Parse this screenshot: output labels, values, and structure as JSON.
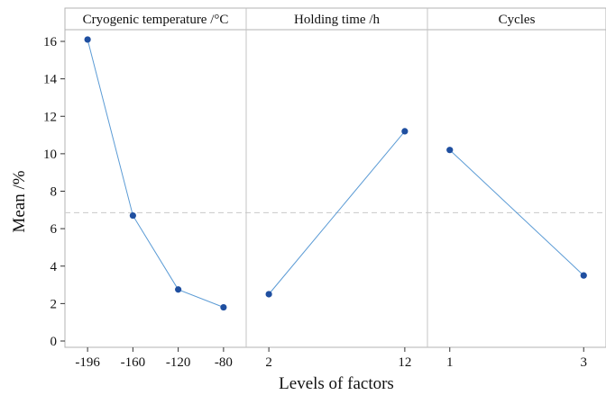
{
  "chart_data": {
    "type": "line",
    "xlabel": "Levels of factors",
    "ylabel": "Mean /%",
    "ylim": [
      0,
      16
    ],
    "yticks": [
      0,
      2,
      4,
      6,
      8,
      10,
      12,
      14,
      16
    ],
    "grand_mean": 6.85,
    "grid": false,
    "colors": {
      "line": "#5b9bd5",
      "marker": "#1f4fa0",
      "reference": "#cfcfcf",
      "frame": "#b3b3b3",
      "panel_border": "#c4c4c4"
    },
    "panels": [
      {
        "title": "Cryogenic temperature /°C",
        "categories": [
          "-196",
          "-160",
          "-120",
          "-80"
        ],
        "values": [
          16.1,
          6.7,
          2.75,
          1.8
        ]
      },
      {
        "title": "Holding time /h",
        "categories": [
          "2",
          "12"
        ],
        "values": [
          2.5,
          11.2
        ]
      },
      {
        "title": "Cycles",
        "categories": [
          "1",
          "3"
        ],
        "values": [
          10.2,
          3.5
        ]
      }
    ]
  }
}
